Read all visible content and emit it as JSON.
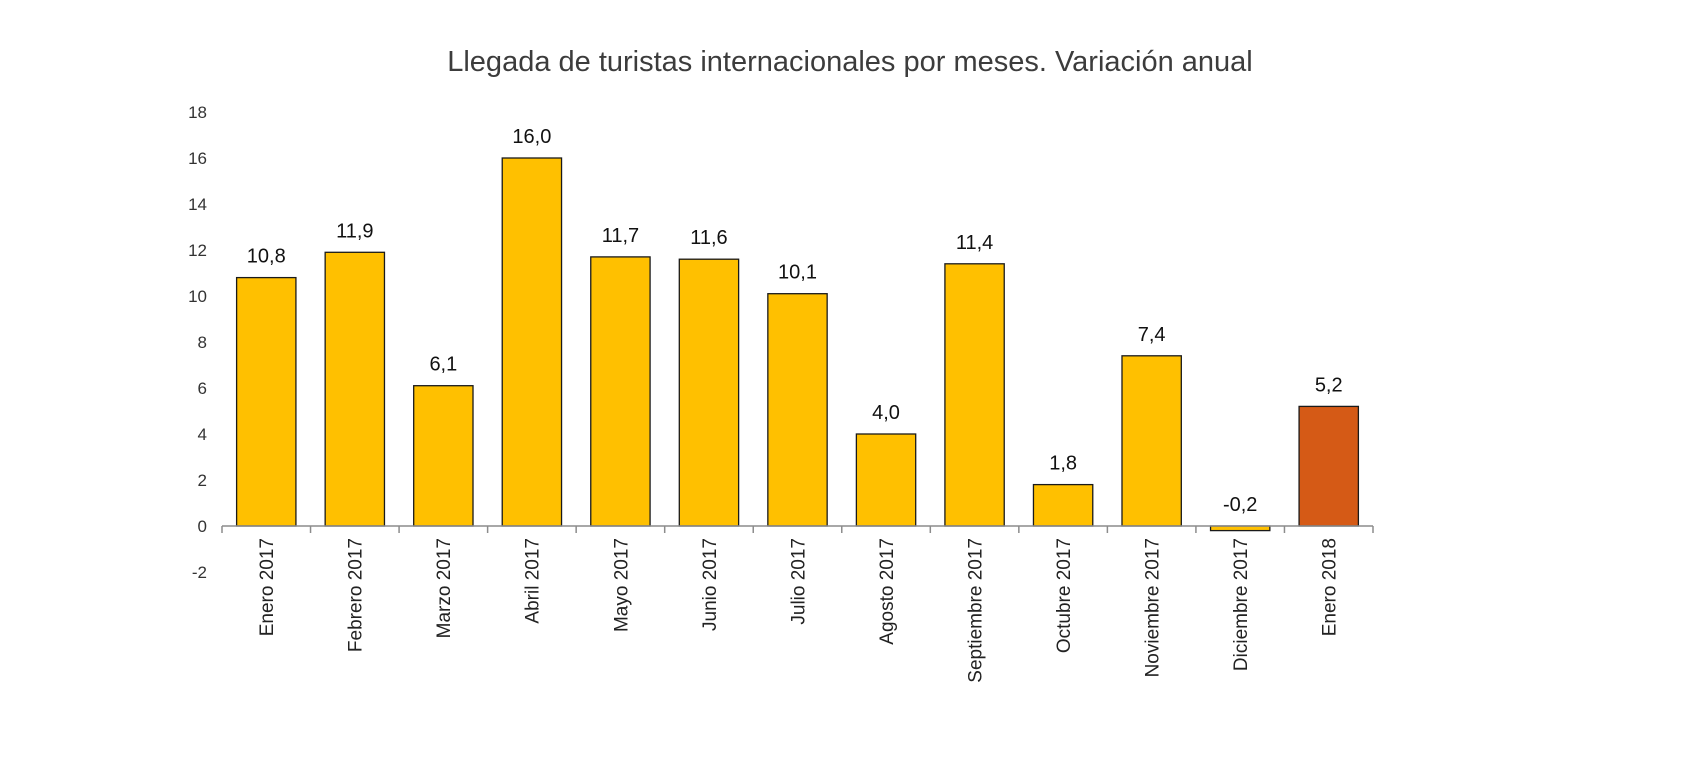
{
  "chart_data": {
    "type": "bar",
    "title": "Llegada de turistas internacionales por meses. Variación anual",
    "xlabel": "",
    "ylabel": "",
    "categories": [
      "Enero 2017",
      "Febrero 2017",
      "Marzo 2017",
      "Abril 2017",
      "Mayo 2017",
      "Junio 2017",
      "Julio 2017",
      "Agosto 2017",
      "Septiembre 2017",
      "Octubre 2017",
      "Noviembre 2017",
      "Diciembre 2017",
      "Enero 2018"
    ],
    "values": [
      10.8,
      11.9,
      6.1,
      16.0,
      11.7,
      11.6,
      10.1,
      4.0,
      11.4,
      1.8,
      7.4,
      -0.2,
      5.2
    ],
    "data_labels": [
      "10,8",
      "11,9",
      "6,1",
      "16,0",
      "11,7",
      "11,6",
      "10,1",
      "4,0",
      "11,4",
      "1,8",
      "7,4",
      "-0,2",
      "5,2"
    ],
    "ylim": [
      -2,
      18
    ],
    "yticks": [
      -2,
      0,
      2,
      4,
      6,
      8,
      10,
      12,
      14,
      16,
      18
    ],
    "grid": false,
    "legend": "none",
    "colors": {
      "bar": "#FFC000",
      "highlight_bar": "#D55A16",
      "bar_outline": "#1a1a1a",
      "axis": "#8c8c8c"
    },
    "highlight_index": 12
  }
}
